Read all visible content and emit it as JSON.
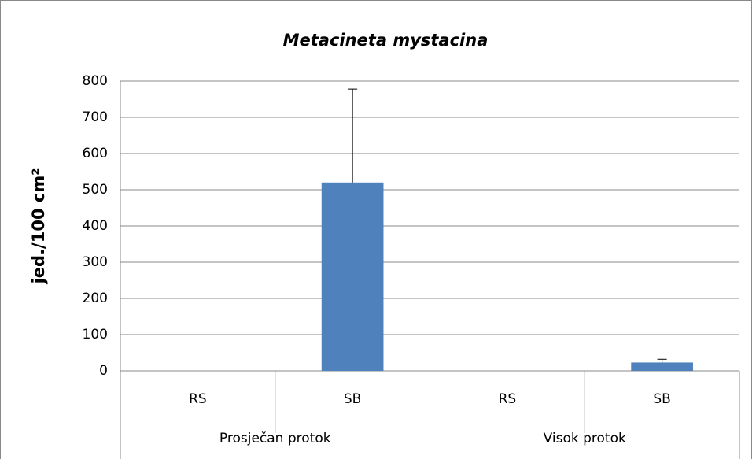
{
  "chart_data": {
    "type": "bar",
    "title": "Metacineta mystacina",
    "ylabel": "jed./100 cm²",
    "categories": [
      "RS",
      "SB",
      "RS",
      "SB"
    ],
    "groups": [
      "Prosječan protok",
      "Visok protok"
    ],
    "values": [
      0,
      520,
      0,
      23
    ],
    "errors": [
      0,
      258,
      0,
      9
    ],
    "color": "#4f81bd",
    "ylim": [
      0,
      800
    ],
    "yticks": [
      0,
      100,
      200,
      300,
      400,
      500,
      600,
      700,
      800
    ],
    "grid": true
  }
}
